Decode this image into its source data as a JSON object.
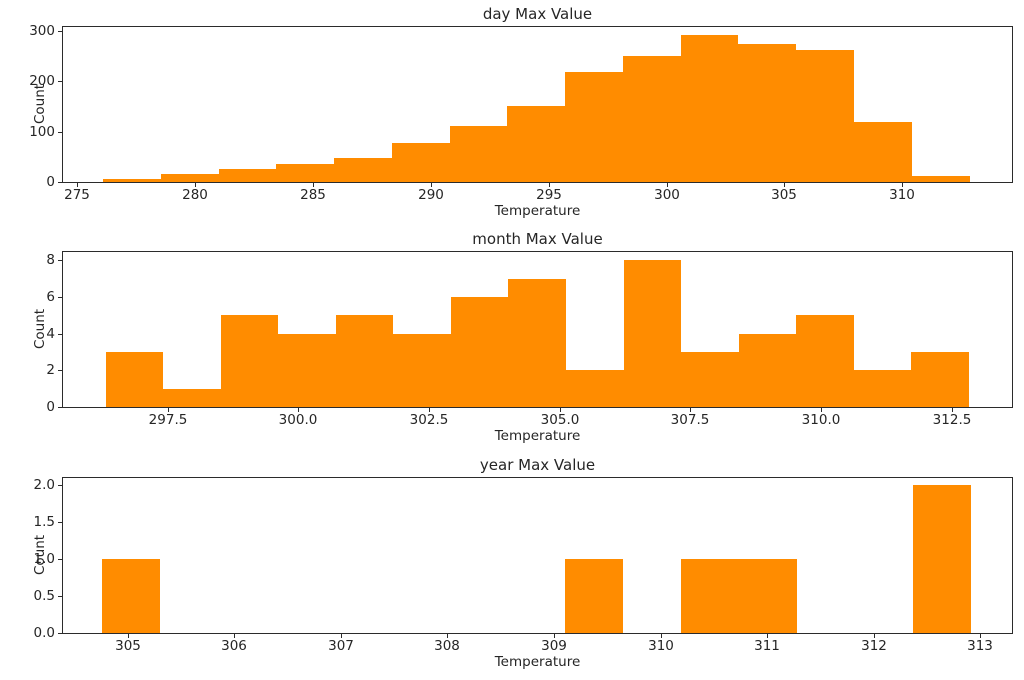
{
  "figure": {
    "background": "#ffffff",
    "text_color": "#262626",
    "spine_color": "#2b2b2b"
  },
  "chart_data": [
    {
      "type": "bar",
      "subtype": "histogram",
      "title": "day Max Value",
      "xlabel": "Temperature",
      "ylabel": "Count",
      "bar_color": "#ff8c00",
      "grid": false,
      "legend": null,
      "xlim": [
        274.4,
        314.65
      ],
      "ylim": [
        0,
        308
      ],
      "bin_start": 276.1,
      "bin_width": 2.45,
      "counts": [
        6,
        16,
        26,
        36,
        47,
        77,
        112,
        152,
        218,
        251,
        293,
        274,
        262,
        120,
        12
      ],
      "xticks": [
        275,
        280,
        285,
        290,
        295,
        300,
        305,
        310
      ],
      "xtick_labels": [
        "275",
        "280",
        "285",
        "290",
        "295",
        "300",
        "305",
        "310"
      ],
      "yticks": [
        0,
        100,
        200,
        300
      ],
      "ytick_labels": [
        "0",
        "100",
        "200",
        "300"
      ]
    },
    {
      "type": "bar",
      "subtype": "histogram",
      "title": "month Max Value",
      "xlabel": "Temperature",
      "ylabel": "Count",
      "bar_color": "#ff8c00",
      "grid": false,
      "legend": null,
      "xlim": [
        295.5,
        313.65
      ],
      "ylim": [
        0,
        8.46
      ],
      "bin_start": 296.32,
      "bin_width": 1.1,
      "counts": [
        3,
        1,
        5,
        4,
        5,
        4,
        6,
        7,
        2,
        8,
        3,
        4,
        5,
        2,
        3
      ],
      "xticks": [
        297.5,
        300.0,
        302.5,
        305.0,
        307.5,
        310.0,
        312.5
      ],
      "xtick_labels": [
        "297.5",
        "300.0",
        "302.5",
        "305.0",
        "307.5",
        "310.0",
        "312.5"
      ],
      "yticks": [
        0,
        2,
        4,
        6,
        8
      ],
      "ytick_labels": [
        "0",
        "2",
        "4",
        "6",
        "8"
      ]
    },
    {
      "type": "bar",
      "subtype": "histogram",
      "title": "year Max Value",
      "xlabel": "Temperature",
      "ylabel": "Count",
      "bar_color": "#ff8c00",
      "grid": false,
      "legend": null,
      "xlim": [
        304.39,
        313.3
      ],
      "ylim": [
        0,
        2.093
      ],
      "bin_start": 304.755,
      "bin_width": 0.544,
      "counts": [
        1,
        0,
        0,
        0,
        0,
        0,
        0,
        0,
        1,
        0,
        1,
        1,
        0,
        0,
        2
      ],
      "xticks": [
        305,
        306,
        307,
        308,
        309,
        310,
        311,
        312,
        313
      ],
      "xtick_labels": [
        "305",
        "306",
        "307",
        "308",
        "309",
        "310",
        "311",
        "312",
        "313"
      ],
      "yticks": [
        0,
        0.5,
        1.0,
        1.5,
        2.0
      ],
      "ytick_labels": [
        "0.0",
        "0.5",
        "1.0",
        "1.5",
        "2.0"
      ]
    }
  ]
}
